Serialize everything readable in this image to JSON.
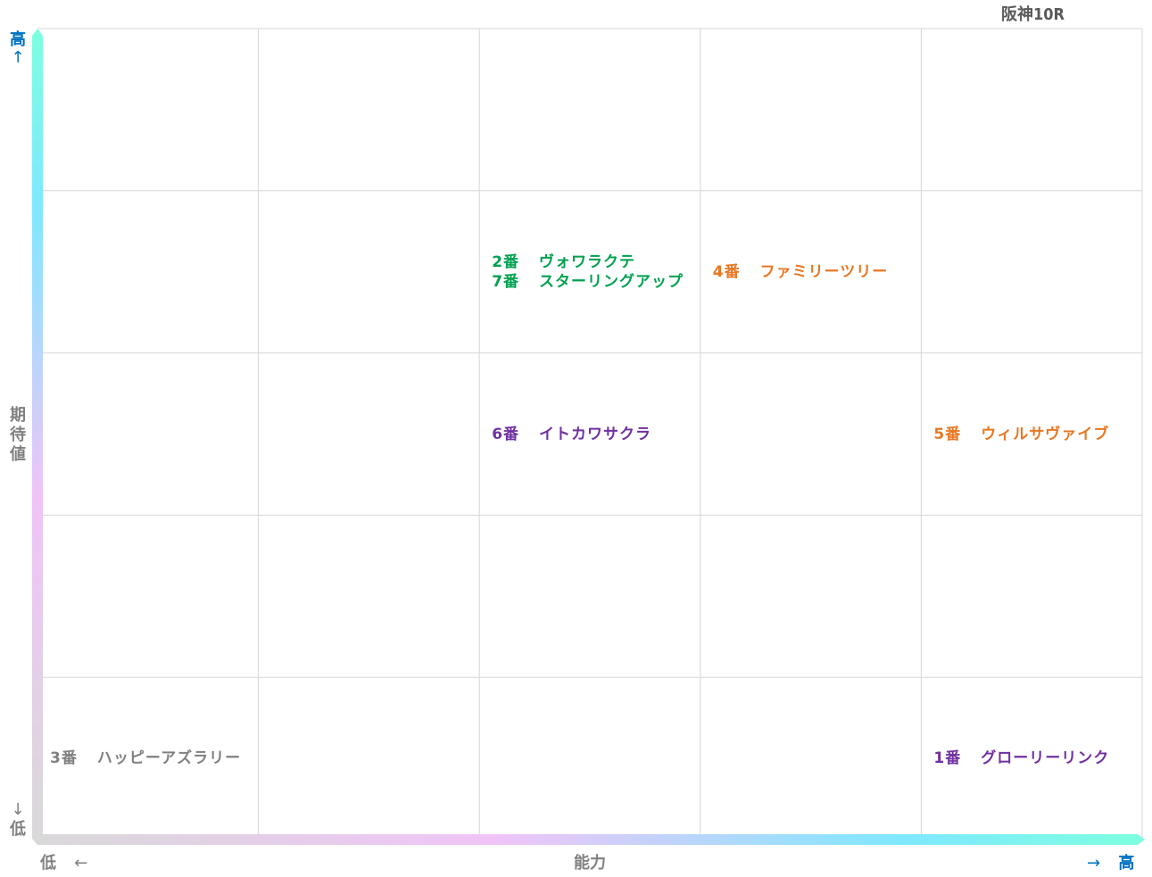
{
  "race_name": "阪神10R",
  "axes": {
    "y_label": "期待値",
    "y_high": "高",
    "y_low": "低",
    "x_label": "能力",
    "x_low": "低",
    "x_high": "高",
    "arrow_right": "→",
    "arrow_left": "←",
    "arrow_up": "↑",
    "arrow_down": "↓"
  },
  "colors": {
    "green": "#00a050",
    "orange": "#e87722",
    "purple": "#7030a0",
    "gray": "#808080",
    "axis_gradient": [
      "#d9d9d9",
      "#f0c4f8",
      "#7fe8ff",
      "#7dffe0"
    ]
  },
  "chart_data": {
    "type": "scatter",
    "xlabel": "能力",
    "ylabel": "期待値",
    "x_categories": [
      1,
      2,
      3,
      4,
      5
    ],
    "y_categories": [
      1,
      2,
      3,
      4,
      5
    ],
    "grid": true,
    "points": [
      {
        "number": "2番",
        "name": "ヴォワラクテ",
        "x": 3,
        "y": 4,
        "color": "#00a050"
      },
      {
        "number": "7番",
        "name": "スターリングアップ",
        "x": 3,
        "y": 4,
        "color": "#00a050"
      },
      {
        "number": "4番",
        "name": "ファミリーツリー",
        "x": 4,
        "y": 4,
        "color": "#e87722"
      },
      {
        "number": "6番",
        "name": "イトカワサクラ",
        "x": 3,
        "y": 3,
        "color": "#7030a0"
      },
      {
        "number": "5番",
        "name": "ウィルサヴァイブ",
        "x": 5,
        "y": 3,
        "color": "#e87722"
      },
      {
        "number": "3番",
        "name": "ハッピーアズラリー",
        "x": 1,
        "y": 1,
        "color": "#808080"
      },
      {
        "number": "1番",
        "name": "グローリーリンク",
        "x": 5,
        "y": 1,
        "color": "#7030a0"
      }
    ]
  }
}
